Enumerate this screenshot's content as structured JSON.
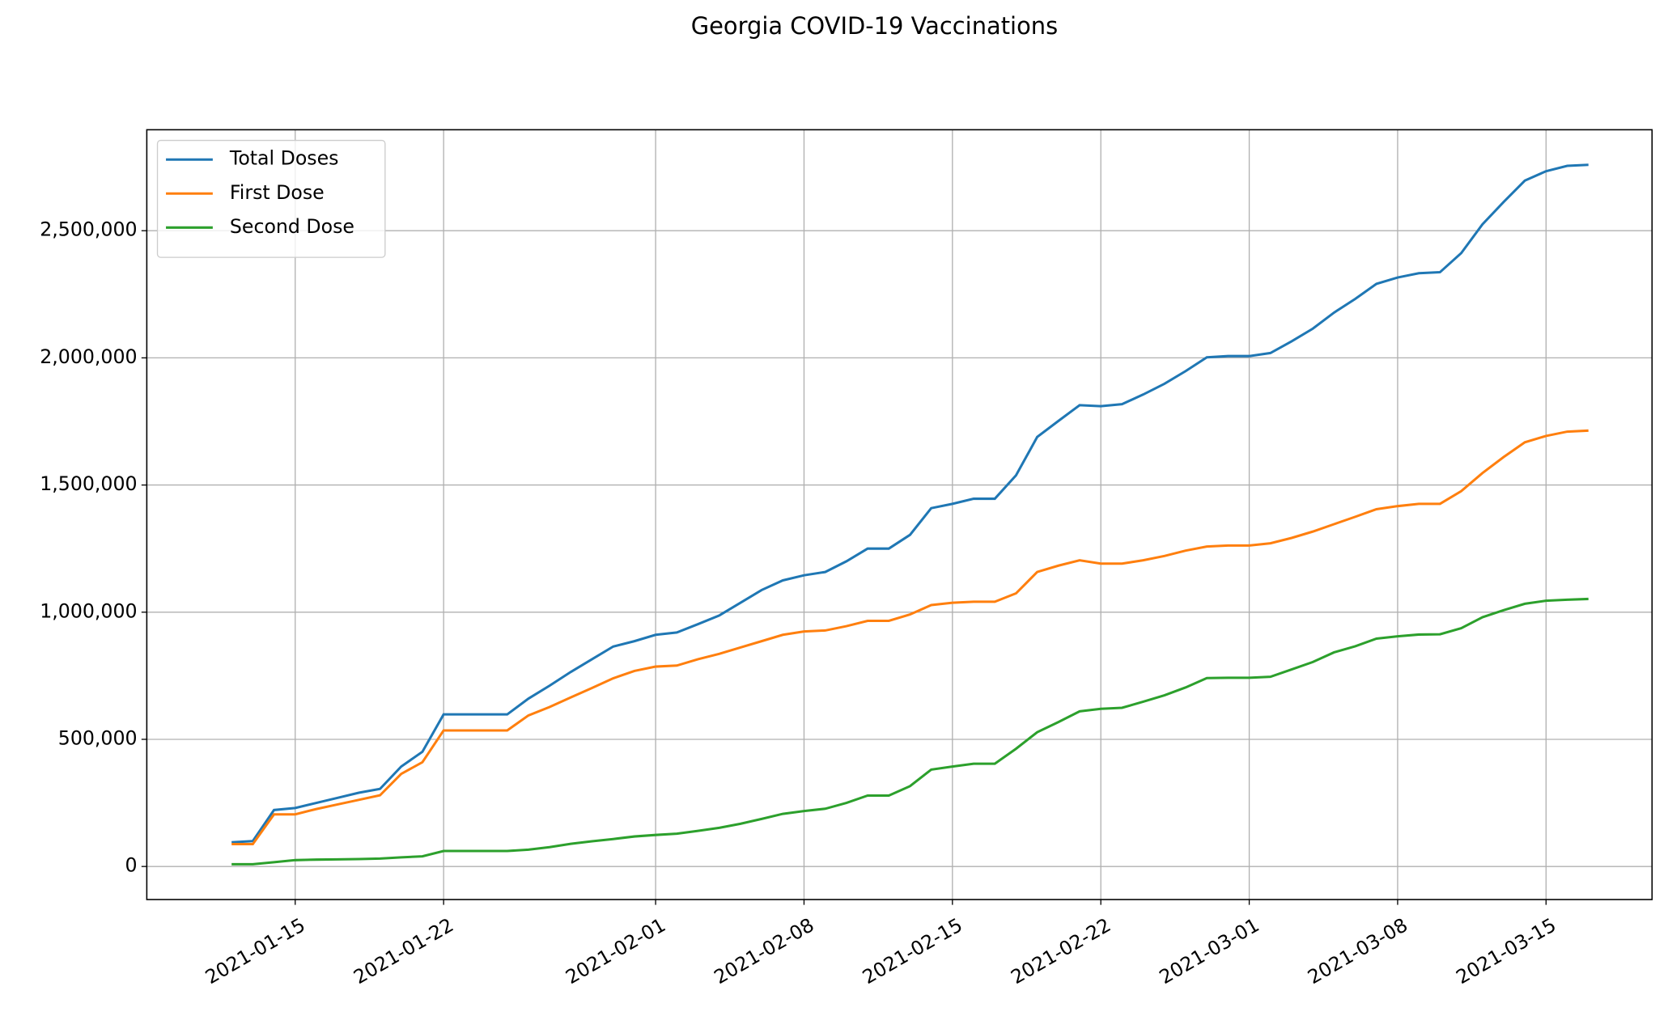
{
  "chart_data": {
    "type": "line",
    "title": "Georgia COVID-19 Vaccinations",
    "x": [
      "2021-01-12",
      "2021-01-13",
      "2021-01-14",
      "2021-01-15",
      "2021-01-16",
      "2021-01-17",
      "2021-01-18",
      "2021-01-19",
      "2021-01-20",
      "2021-01-21",
      "2021-01-22",
      "2021-01-23",
      "2021-01-24",
      "2021-01-25",
      "2021-01-26",
      "2021-01-27",
      "2021-01-28",
      "2021-01-29",
      "2021-01-30",
      "2021-01-31",
      "2021-02-01",
      "2021-02-02",
      "2021-02-03",
      "2021-02-04",
      "2021-02-05",
      "2021-02-06",
      "2021-02-07",
      "2021-02-08",
      "2021-02-09",
      "2021-02-10",
      "2021-02-11",
      "2021-02-12",
      "2021-02-13",
      "2021-02-14",
      "2021-02-15",
      "2021-02-16",
      "2021-02-17",
      "2021-02-18",
      "2021-02-19",
      "2021-02-20",
      "2021-02-21",
      "2021-02-22",
      "2021-02-23",
      "2021-02-24",
      "2021-02-25",
      "2021-02-26",
      "2021-02-27",
      "2021-02-28",
      "2021-03-01",
      "2021-03-02",
      "2021-03-03",
      "2021-03-04",
      "2021-03-05",
      "2021-03-06",
      "2021-03-07",
      "2021-03-08",
      "2021-03-09",
      "2021-03-10",
      "2021-03-11",
      "2021-03-12",
      "2021-03-13",
      "2021-03-14",
      "2021-03-15",
      "2021-03-16",
      "2021-03-17"
    ],
    "series": [
      {
        "name": "Total Doses",
        "color": "#1f77b4",
        "values": [
          95000,
          100000,
          222000,
          230000,
          250000,
          270000,
          290000,
          305000,
          393000,
          451000,
          598000,
          598000,
          598000,
          598000,
          660000,
          711000,
          765000,
          815000,
          865000,
          886000,
          911000,
          920000,
          953000,
          987000,
          1037000,
          1087000,
          1125000,
          1145000,
          1158000,
          1200000,
          1250000,
          1250000,
          1304000,
          1409000,
          1426000,
          1446000,
          1446000,
          1538000,
          1689000,
          1752000,
          1814000,
          1810000,
          1818000,
          1856000,
          1898000,
          1948000,
          2002000,
          2007000,
          2007000,
          2019000,
          2065000,
          2115000,
          2178000,
          2232000,
          2291000,
          2316000,
          2333000,
          2337000,
          2412000,
          2525000,
          2613000,
          2697000,
          2734000,
          2755000,
          2759000
        ]
      },
      {
        "name": "First Dose",
        "color": "#ff7f0e",
        "values": [
          88000,
          88000,
          205000,
          205000,
          226000,
          244000,
          262000,
          280000,
          364000,
          410000,
          535000,
          535000,
          535000,
          535000,
          594000,
          627000,
          665000,
          702000,
          740000,
          769000,
          786000,
          790000,
          815000,
          836000,
          861000,
          886000,
          911000,
          924000,
          928000,
          945000,
          966000,
          966000,
          991000,
          1028000,
          1037000,
          1041000,
          1041000,
          1074000,
          1158000,
          1183000,
          1204000,
          1191000,
          1191000,
          1204000,
          1221000,
          1242000,
          1258000,
          1262000,
          1262000,
          1271000,
          1292000,
          1317000,
          1346000,
          1375000,
          1405000,
          1417000,
          1426000,
          1426000,
          1476000,
          1547000,
          1610000,
          1668000,
          1693000,
          1710000,
          1714000
        ]
      },
      {
        "name": "Second Dose",
        "color": "#2ca02c",
        "values": [
          9000,
          9000,
          17000,
          25000,
          27000,
          28000,
          29000,
          31000,
          36000,
          40000,
          61000,
          61000,
          61000,
          61000,
          66000,
          76000,
          89000,
          99000,
          108000,
          118000,
          124000,
          129000,
          140000,
          152000,
          168000,
          187000,
          207000,
          218000,
          227000,
          250000,
          279000,
          279000,
          316000,
          381000,
          393000,
          404000,
          404000,
          463000,
          528000,
          568000,
          610000,
          620000,
          624000,
          648000,
          673000,
          704000,
          741000,
          742000,
          742000,
          746000,
          775000,
          804000,
          842000,
          866000,
          896000,
          905000,
          912000,
          913000,
          937000,
          980000,
          1008000,
          1033000,
          1045000,
          1049000,
          1052000
        ]
      }
    ],
    "xlim": [
      "2021-01-08",
      "2021-03-20"
    ],
    "xticks": [
      "2021-01-15",
      "2021-01-22",
      "2021-02-01",
      "2021-02-08",
      "2021-02-15",
      "2021-02-22",
      "2021-03-01",
      "2021-03-08",
      "2021-03-15"
    ],
    "ylim": [
      -130000,
      2897000
    ],
    "yticks": [
      0,
      {
        "value": 500000,
        "label": "500,000"
      },
      {
        "value": 1000000,
        "label": "1,000,000"
      },
      {
        "value": 1500000,
        "label": "1,500,000"
      },
      {
        "value": 2000000,
        "label": "2,000,000"
      },
      {
        "value": 2500000,
        "label": "2,500,000"
      }
    ],
    "grid": true,
    "legend": "upper left"
  }
}
